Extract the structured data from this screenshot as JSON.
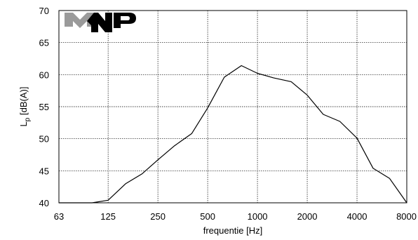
{
  "chart_data": {
    "type": "line",
    "title": "",
    "xlabel": "frequentie [Hz]",
    "ylabel_main": "L",
    "ylabel_sub": "p",
    "ylabel_rest": " [dB(A)]",
    "x_scale": "log",
    "x_ticks": [
      "63",
      "125",
      "250",
      "500",
      "1000",
      "2000",
      "4000",
      "8000"
    ],
    "y_ticks": [
      "40",
      "45",
      "50",
      "55",
      "60",
      "65",
      "70"
    ],
    "ylim": [
      40,
      70
    ],
    "xlim": [
      63,
      8000
    ],
    "grid": true,
    "legend": "none",
    "line_color": "#000000",
    "series": [
      {
        "x": [
          63,
          80,
          100,
          125,
          160,
          200,
          250,
          315,
          400,
          500,
          630,
          800,
          1000,
          1250,
          1600,
          2000,
          2500,
          3150,
          4000,
          5000,
          6300,
          8000
        ],
        "y": [
          38.5,
          39.0,
          39.6,
          40.4,
          43.0,
          44.5,
          46.7,
          48.9,
          50.8,
          54.8,
          59.6,
          61.4,
          60.2,
          59.5,
          58.9,
          56.8,
          53.8,
          52.7,
          50.1,
          45.4,
          43.8,
          39.8
        ]
      }
    ]
  },
  "logo": {
    "text": "MNP",
    "colors": [
      "#9a9a9a",
      "#000000"
    ]
  }
}
